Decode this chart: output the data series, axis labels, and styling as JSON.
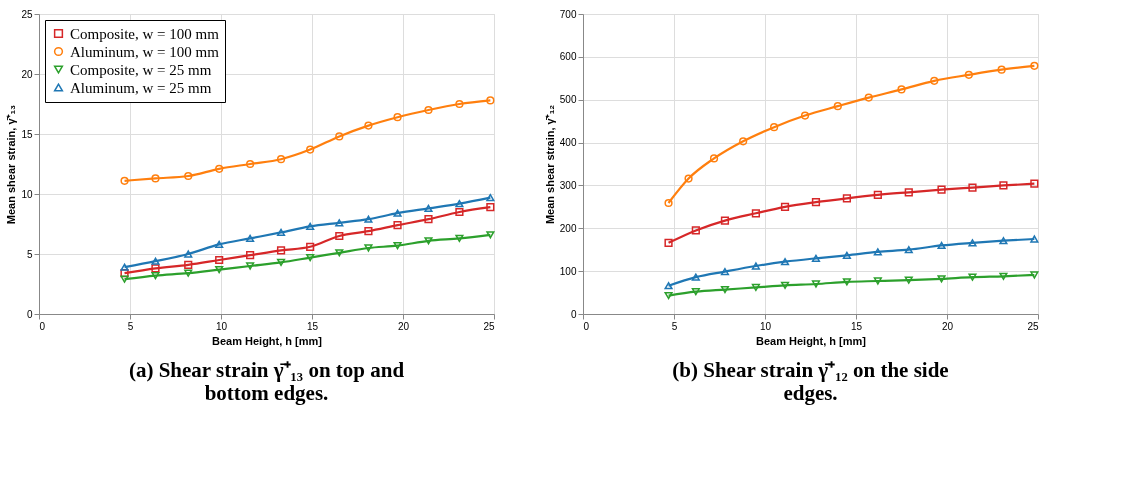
{
  "chart_data": [
    {
      "type": "line",
      "title": "(a) Shear strain γ̄⁺₁₃ on top and bottom edges.",
      "xlabel": "Beam Height, h [mm]",
      "ylabel": "Mean shear strain, γ̄⁺₁₃",
      "x": [
        4.7,
        6.4,
        8.2,
        9.9,
        11.6,
        13.3,
        14.9,
        16.5,
        18.1,
        19.7,
        21.4,
        23.1,
        24.8
      ],
      "series": [
        {
          "name": "Composite, w = 100 mm",
          "color": "#d62728",
          "marker": "square",
          "values": [
            3.4,
            3.8,
            4.1,
            4.5,
            4.9,
            5.3,
            5.6,
            6.5,
            6.9,
            7.4,
            7.9,
            8.5,
            8.9
          ]
        },
        {
          "name": "Aluminum, w = 100 mm",
          "color": "#ff7f0e",
          "marker": "circle",
          "values": [
            11.1,
            11.3,
            11.5,
            12.1,
            12.5,
            12.9,
            13.7,
            14.8,
            15.7,
            16.4,
            17.0,
            17.5,
            17.8
          ]
        },
        {
          "name": "Composite, w = 25 mm",
          "color": "#2ca02c",
          "marker": "triangle-down",
          "values": [
            2.9,
            3.2,
            3.4,
            3.7,
            4.0,
            4.3,
            4.7,
            5.1,
            5.5,
            5.7,
            6.1,
            6.3,
            6.6
          ]
        },
        {
          "name": "Aluminum, w = 25 mm",
          "color": "#1f77b4",
          "marker": "triangle",
          "values": [
            3.9,
            4.4,
            5.0,
            5.8,
            6.3,
            6.8,
            7.3,
            7.6,
            7.9,
            8.4,
            8.8,
            9.2,
            9.7
          ]
        }
      ],
      "xlim": [
        0,
        25
      ],
      "xticks": [
        0,
        5,
        10,
        15,
        20,
        25
      ],
      "ylim": [
        0,
        25
      ],
      "yticks": [
        0,
        5,
        10,
        15,
        20,
        25
      ],
      "grid": true,
      "legend": "top left"
    },
    {
      "type": "line",
      "title": "(b) Shear strain γ̄⁺₁₂ on the side edges.",
      "xlabel": "Beam Height, h [mm]",
      "ylabel": "Mean shear strain, γ̄⁺₁₂",
      "x": [
        4.7,
        6.2,
        7.8,
        9.5,
        11.1,
        12.8,
        14.5,
        16.2,
        17.9,
        19.7,
        21.4,
        23.1,
        24.8
      ],
      "series": [
        {
          "name": "Composite, w = 100 mm",
          "color": "#d62728",
          "marker": "square",
          "values": [
            166,
            195,
            218,
            235,
            250,
            261,
            270,
            278,
            284,
            290,
            295,
            300,
            304
          ]
        },
        {
          "name": "Aluminum, w = 100 mm",
          "color": "#ff7f0e",
          "marker": "circle",
          "x": [
            4.7,
            5.8,
            7.2,
            8.8,
            10.5,
            12.2,
            14.0,
            15.7,
            17.5,
            19.3,
            21.2,
            23.0,
            24.8
          ],
          "values": [
            259,
            316,
            363,
            403,
            436,
            463,
            485,
            505,
            524,
            544,
            558,
            570,
            579
          ]
        },
        {
          "name": "Composite, w = 25 mm",
          "color": "#2ca02c",
          "marker": "triangle-down",
          "values": [
            43,
            52,
            57,
            62,
            67,
            70,
            75,
            77,
            79,
            82,
            86,
            88,
            91
          ]
        },
        {
          "name": "Aluminum, w = 25 mm",
          "color": "#1f77b4",
          "marker": "triangle",
          "values": [
            66,
            86,
            99,
            112,
            122,
            130,
            137,
            145,
            150,
            160,
            166,
            171,
            175
          ]
        }
      ],
      "xlim": [
        0,
        25
      ],
      "xticks": [
        0,
        5,
        10,
        15,
        20,
        25
      ],
      "ylim": [
        0,
        700
      ],
      "yticks": [
        0,
        100,
        200,
        300,
        400,
        500,
        600,
        700
      ],
      "grid": true,
      "legend": "top left"
    }
  ]
}
